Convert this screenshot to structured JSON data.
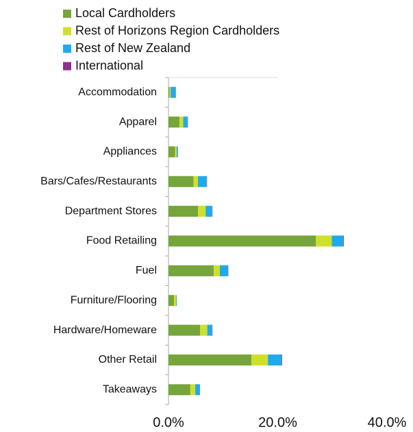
{
  "chart_data": {
    "type": "stacked_bar_horizontal",
    "categories": [
      "Accommodation",
      "Apparel",
      "Appliances",
      "Bars/Cafes/Restaurants",
      "Department Stores",
      "Food Retailing",
      "Fuel",
      "Furniture/Flooring",
      "Hardware/Homeware",
      "Other Retail",
      "Takeaways"
    ],
    "series": [
      {
        "name": "Local Cardholders",
        "color": "#76a53b",
        "values": [
          0.2,
          2.0,
          1.2,
          4.6,
          5.4,
          27.0,
          8.3,
          1.0,
          5.8,
          15.2,
          4.0
        ]
      },
      {
        "name": "Rest of Horizons Region Cardholders",
        "color": "#cfe02b",
        "values": [
          0.2,
          0.7,
          0.3,
          0.8,
          1.4,
          2.9,
          1.1,
          0.4,
          1.3,
          3.0,
          0.9
        ]
      },
      {
        "name": "Rest of New Zealand",
        "color": "#20aaee",
        "values": [
          0.9,
          0.8,
          0.2,
          1.6,
          1.2,
          2.1,
          1.5,
          0.1,
          0.9,
          2.5,
          0.8
        ]
      },
      {
        "name": "International",
        "color": "#8e2f91",
        "values": [
          0.05,
          0.05,
          0.02,
          0.05,
          0.05,
          0.1,
          0.05,
          0.02,
          0.05,
          0.1,
          0.05
        ]
      }
    ],
    "xlim": [
      0,
      40
    ],
    "xticks": [
      {
        "value": 0,
        "label": "0.0%"
      },
      {
        "value": 20,
        "label": "20.0%"
      },
      {
        "value": 40,
        "label": "40.0%"
      }
    ],
    "legend": "top-left"
  }
}
